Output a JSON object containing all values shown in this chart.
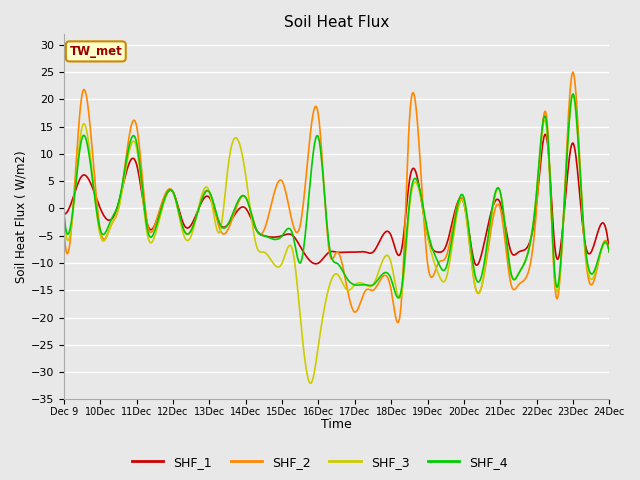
{
  "title": "Soil Heat Flux",
  "xlabel": "Time",
  "ylabel": "Soil Heat Flux ( W/m2)",
  "ylim": [
    -35,
    32
  ],
  "yticks": [
    -35,
    -30,
    -25,
    -20,
    -15,
    -10,
    -5,
    0,
    5,
    10,
    15,
    20,
    25,
    30
  ],
  "background_color": "#e8e8e8",
  "plot_bg_color": "#e8e8e8",
  "grid_color": "#ffffff",
  "colors": {
    "SHF_1": "#cc0000",
    "SHF_2": "#ff8800",
    "SHF_3": "#cccc00",
    "SHF_4": "#00cc00"
  },
  "legend_bg": "#ffffcc",
  "legend_border": "#cc8800",
  "legend_text_color": "#990000",
  "fig_width": 6.4,
  "fig_height": 4.8,
  "dpi": 100
}
